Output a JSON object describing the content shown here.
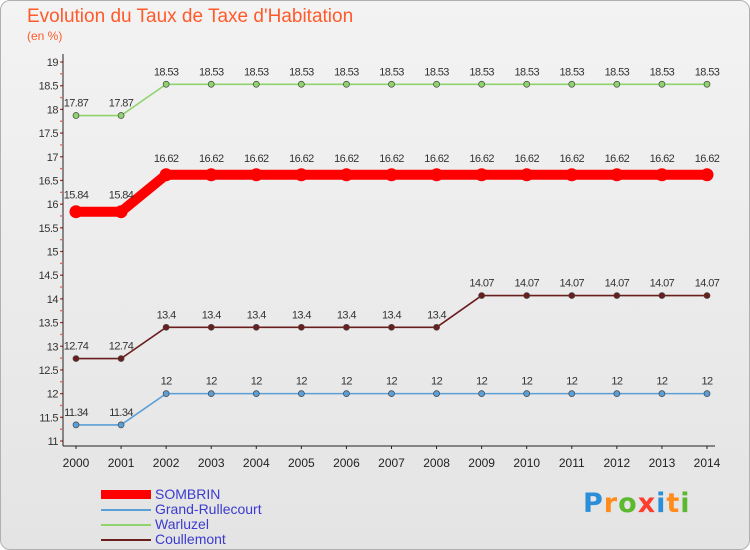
{
  "header": {
    "title": "Evolution du Taux de Taxe d'Habitation",
    "subtitle": "(en %)"
  },
  "logo": {
    "text": "Proxiti",
    "letter_colors": [
      "#2a8fd8",
      "#ff8c1a",
      "#5cb82e",
      "#ff3d2e",
      "#2a8fd8",
      "#ff8c1a",
      "#5cb82e"
    ]
  },
  "chart_data": {
    "type": "line",
    "title": "Evolution du Taux de Taxe d'Habitation",
    "subtitle": "(en %)",
    "xlabel": "",
    "ylabel": "",
    "x": [
      "2000",
      "2001",
      "2002",
      "2003",
      "2004",
      "2005",
      "2006",
      "2007",
      "2008",
      "2009",
      "2010",
      "2011",
      "2012",
      "2013",
      "2014"
    ],
    "ylim": [
      11,
      19
    ],
    "yticks": [
      "11",
      "11.5",
      "12",
      "12.5",
      "13",
      "13.5",
      "14",
      "14.5",
      "15",
      "15.5",
      "16",
      "16.5",
      "17",
      "17.5",
      "18",
      "18.5",
      "19"
    ],
    "grid": false,
    "legend_position": "bottom-left",
    "series": [
      {
        "name": "SOMBRIN",
        "color": "#ff0000",
        "emphasis": true,
        "values": [
          15.84,
          15.84,
          16.62,
          16.62,
          16.62,
          16.62,
          16.62,
          16.62,
          16.62,
          16.62,
          16.62,
          16.62,
          16.62,
          16.62,
          16.62
        ],
        "labels": [
          "15.84",
          "15.84",
          "16.62",
          "16.62",
          "16.62",
          "16.62",
          "16.62",
          "16.62",
          "16.62",
          "16.62",
          "16.62",
          "16.62",
          "16.62",
          "16.62",
          "16.62"
        ]
      },
      {
        "name": "Grand-Rullecourt",
        "color": "#5b9fd8",
        "emphasis": false,
        "values": [
          11.34,
          11.34,
          12,
          12,
          12,
          12,
          12,
          12,
          12,
          12,
          12,
          12,
          12,
          12,
          12
        ],
        "labels": [
          "11.34",
          "11.34",
          "12",
          "12",
          "12",
          "12",
          "12",
          "12",
          "12",
          "12",
          "12",
          "12",
          "12",
          "12",
          "12"
        ]
      },
      {
        "name": "Warluzel",
        "color": "#8ed36b",
        "emphasis": false,
        "values": [
          17.87,
          17.87,
          18.53,
          18.53,
          18.53,
          18.53,
          18.53,
          18.53,
          18.53,
          18.53,
          18.53,
          18.53,
          18.53,
          18.53,
          18.53
        ],
        "labels": [
          "17.87",
          "17.87",
          "18.53",
          "18.53",
          "18.53",
          "18.53",
          "18.53",
          "18.53",
          "18.53",
          "18.53",
          "18.53",
          "18.53",
          "18.53",
          "18.53",
          "18.53"
        ]
      },
      {
        "name": "Coullemont",
        "color": "#6b1e1e",
        "emphasis": false,
        "values": [
          12.74,
          12.74,
          13.4,
          13.4,
          13.4,
          13.4,
          13.4,
          13.4,
          13.4,
          14.07,
          14.07,
          14.07,
          14.07,
          14.07,
          14.07
        ],
        "labels": [
          "12.74",
          "12.74",
          "13.4",
          "13.4",
          "13.4",
          "13.4",
          "13.4",
          "13.4",
          "13.4",
          "14.07",
          "14.07",
          "14.07",
          "14.07",
          "14.07",
          "14.07"
        ]
      }
    ]
  }
}
